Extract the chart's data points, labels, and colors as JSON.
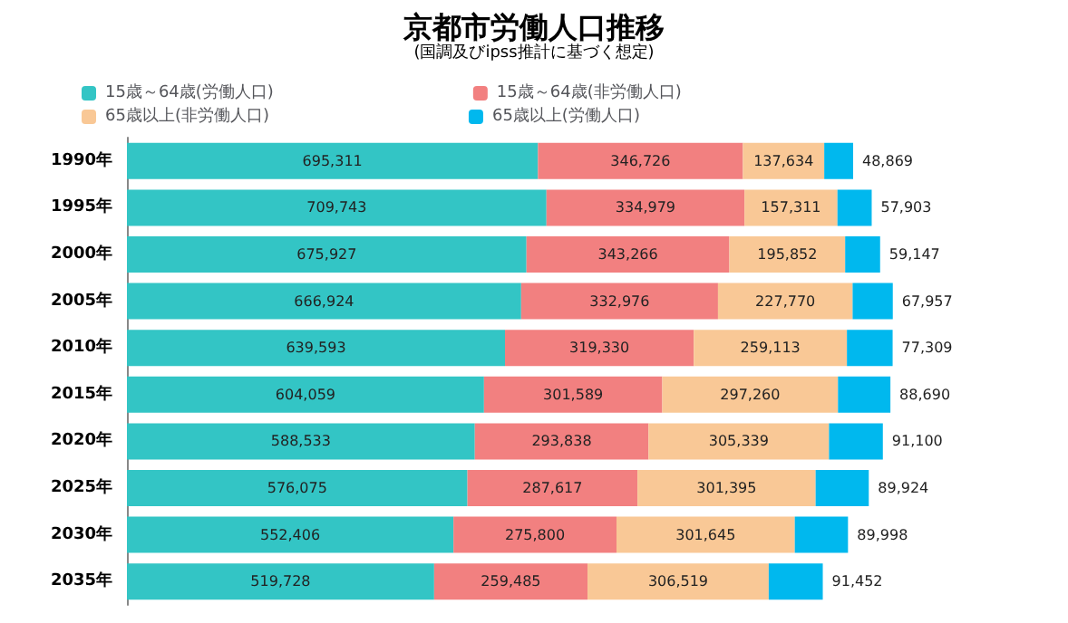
{
  "chart_data": {
    "type": "bar",
    "title": "京都市労働人口推移",
    "subtitle": "(国調及びipss推計に基づく想定)",
    "orientation": "horizontal",
    "stacked": true,
    "legend": "top",
    "tick_labels": "y",
    "categories": [
      "1990年",
      "1995年",
      "2000年",
      "2005年",
      "2010年",
      "2015年",
      "2020年",
      "2025年",
      "2030年",
      "2035年"
    ],
    "series": [
      {
        "name": "15歳～64歳(労働人口)",
        "color": "#33c5c5",
        "values": [
          695311,
          709743,
          675927,
          666924,
          639593,
          604059,
          588533,
          576075,
          552406,
          519728
        ],
        "value_labels": [
          "695,311",
          "709,743",
          "675,927",
          "666,924",
          "639,593",
          "604,059",
          "588,533",
          "576,075",
          "552,406",
          "519,728"
        ]
      },
      {
        "name": "15歳～64歳(非労働人口)",
        "color": "#f28080",
        "values": [
          346726,
          334979,
          343266,
          332976,
          319330,
          301589,
          293838,
          287617,
          275800,
          259485
        ],
        "value_labels": [
          "346,726",
          "334,979",
          "343,266",
          "332,976",
          "319,330",
          "301,589",
          "293,838",
          "287,617",
          "275,800",
          "259,485"
        ]
      },
      {
        "name": "65歳以上(非労働人口)",
        "color": "#f9c896",
        "values": [
          137634,
          157311,
          195852,
          227770,
          259113,
          297260,
          305339,
          301395,
          301645,
          306519
        ],
        "value_labels": [
          "137,634",
          "157,311",
          "195,852",
          "227,770",
          "259,113",
          "297,260",
          "305,339",
          "301,395",
          "301,645",
          "306,519"
        ]
      },
      {
        "name": "65歳以上(労働人口)",
        "color": "#00b8ee",
        "values": [
          48869,
          57903,
          59147,
          67957,
          77309,
          88690,
          91100,
          89924,
          89998,
          91452
        ],
        "value_labels": [
          "48,869",
          "57,903",
          "59,147",
          "67,957",
          "77,309",
          "88,690",
          "91,100",
          "89,924",
          "89,998",
          "91,452"
        ]
      }
    ]
  }
}
